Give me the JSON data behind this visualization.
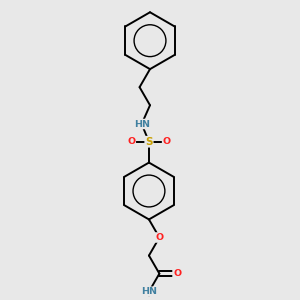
{
  "background_color": "#e8e8e8",
  "bond_color": "#000000",
  "atom_colors": {
    "N": "#4080a0",
    "O": "#ff2020",
    "S": "#c8a000",
    "C": "#000000",
    "H": "#4080a0"
  },
  "figsize": [
    3.0,
    3.0
  ],
  "dpi": 100,
  "bond_lw": 1.4,
  "ring_r": 0.3
}
